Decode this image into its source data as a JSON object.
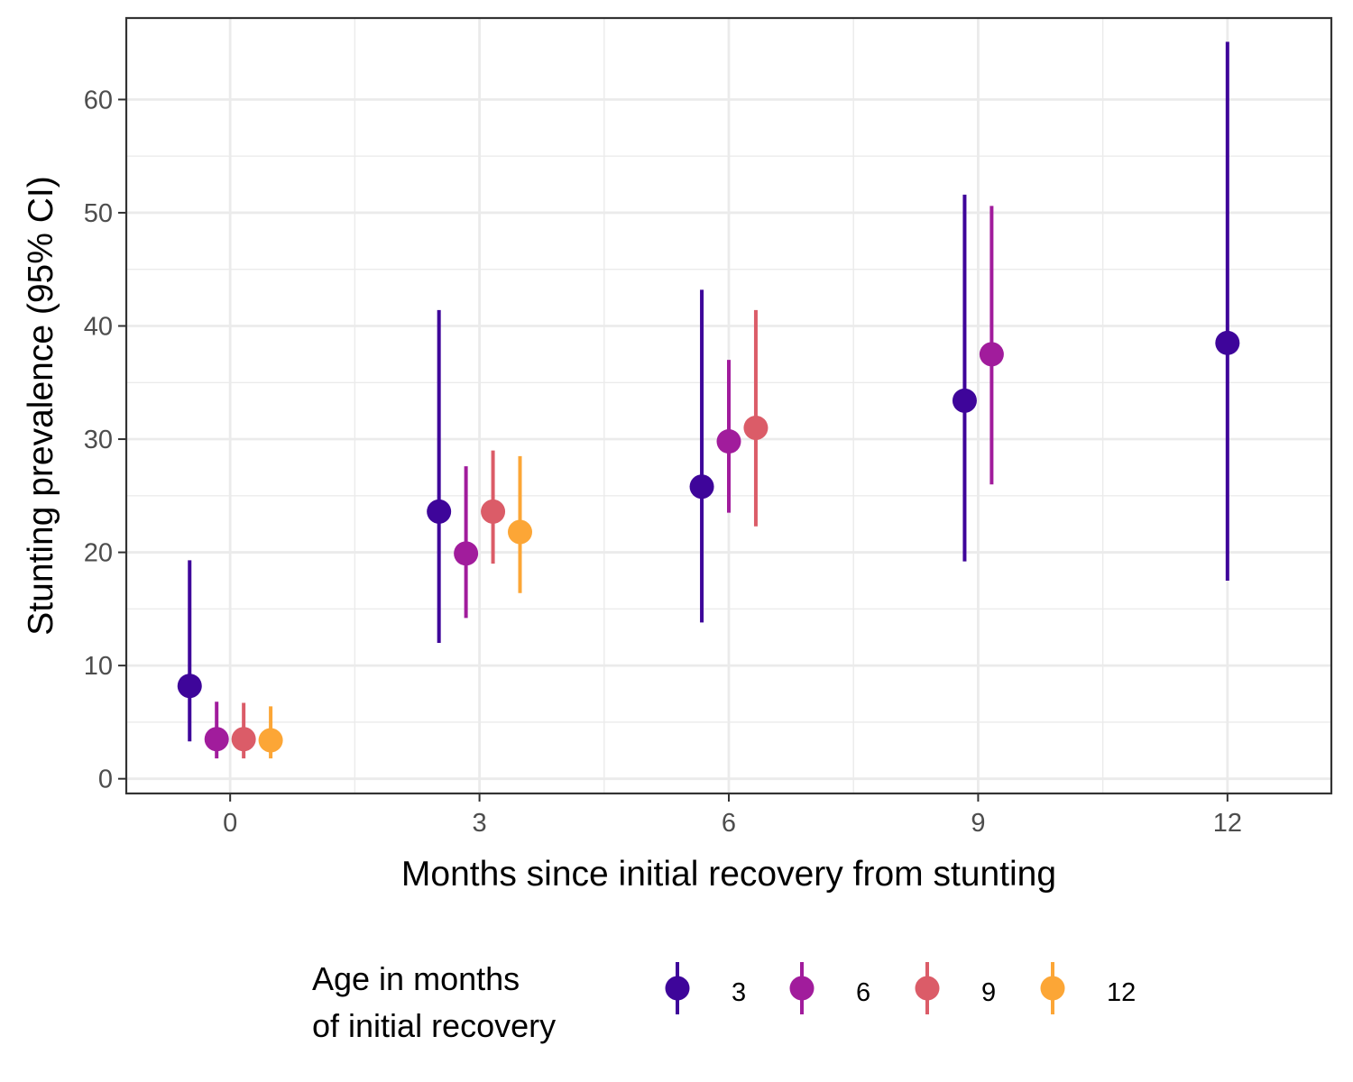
{
  "chart_data": {
    "type": "scatter",
    "subtype": "point-range",
    "title": "",
    "xlabel": "Months since initial recovery from stunting",
    "ylabel": "Stunting prevalence (95% CI)",
    "x_ticks": [
      0,
      3,
      6,
      9,
      12
    ],
    "y_ticks": [
      0,
      10,
      20,
      30,
      40,
      50,
      60
    ],
    "xlim": [
      -1.25,
      13.25
    ],
    "ylim": [
      -1.3,
      67.2
    ],
    "dodge_width": 1.3,
    "grid": true,
    "legend": {
      "title_lines": [
        "Age in months",
        "of initial recovery"
      ],
      "placement": "bottom"
    },
    "series": [
      {
        "name": "3",
        "color": "#3E059A",
        "points": [
          {
            "x": 0,
            "y": 8.2,
            "lo": 3.3,
            "hi": 19.3
          },
          {
            "x": 3,
            "y": 23.6,
            "lo": 12.0,
            "hi": 41.4
          },
          {
            "x": 6,
            "y": 25.8,
            "lo": 13.8,
            "hi": 43.2
          },
          {
            "x": 9,
            "y": 33.4,
            "lo": 19.2,
            "hi": 51.6
          },
          {
            "x": 12,
            "y": 38.5,
            "lo": 17.5,
            "hi": 65.1
          }
        ]
      },
      {
        "name": "6",
        "color": "#A11C9C",
        "points": [
          {
            "x": 0,
            "y": 3.5,
            "lo": 1.8,
            "hi": 6.8
          },
          {
            "x": 3,
            "y": 19.9,
            "lo": 14.2,
            "hi": 27.6
          },
          {
            "x": 6,
            "y": 29.8,
            "lo": 23.5,
            "hi": 37.0
          },
          {
            "x": 9,
            "y": 37.5,
            "lo": 26.0,
            "hi": 50.6
          }
        ]
      },
      {
        "name": "9",
        "color": "#DB5C68",
        "points": [
          {
            "x": 0,
            "y": 3.5,
            "lo": 1.8,
            "hi": 6.7
          },
          {
            "x": 3,
            "y": 23.6,
            "lo": 19.0,
            "hi": 29.0
          },
          {
            "x": 6,
            "y": 31.0,
            "lo": 22.3,
            "hi": 41.4
          }
        ]
      },
      {
        "name": "12",
        "color": "#FCA636",
        "points": [
          {
            "x": 0,
            "y": 3.4,
            "lo": 1.8,
            "hi": 6.4
          },
          {
            "x": 3,
            "y": 21.8,
            "lo": 16.4,
            "hi": 28.5
          }
        ]
      }
    ]
  }
}
